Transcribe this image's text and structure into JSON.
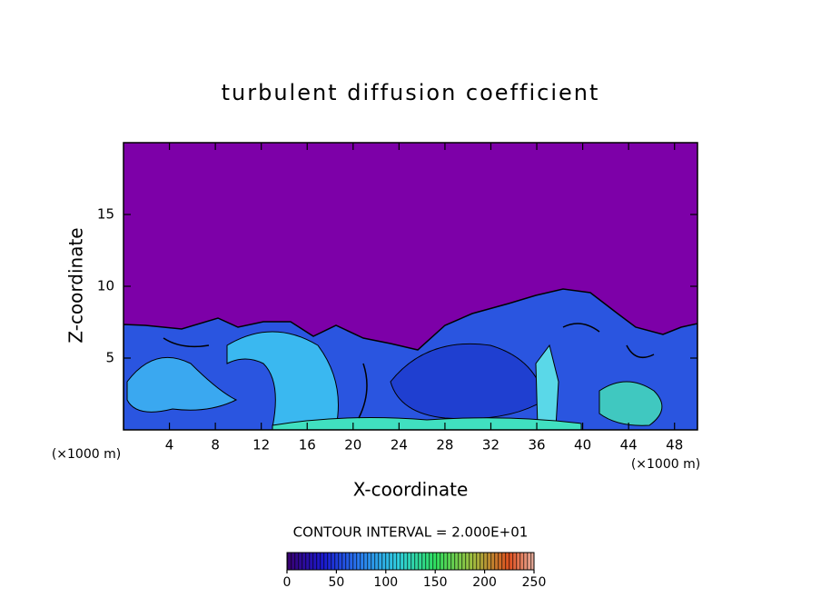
{
  "chart_data": {
    "type": "contour",
    "title": "turbulent diffusion coefficient",
    "xlabel": "X-coordinate",
    "ylabel": "Z-coordinate",
    "xunit_labels": [
      "(×1000 m)",
      "(×1000 m)"
    ],
    "xlim": [
      0,
      50
    ],
    "ylim": [
      0,
      20
    ],
    "xticks": [
      4,
      8,
      12,
      16,
      20,
      24,
      28,
      32,
      36,
      40,
      44,
      48
    ],
    "yticks": [
      5,
      10,
      15
    ],
    "annotation": "CONTOUR INTERVAL = 2.000E+01",
    "clim": [
      0,
      250
    ],
    "cticks": [
      0,
      50,
      100,
      150,
      200,
      250
    ],
    "background_color": "#7d00a8"
  }
}
